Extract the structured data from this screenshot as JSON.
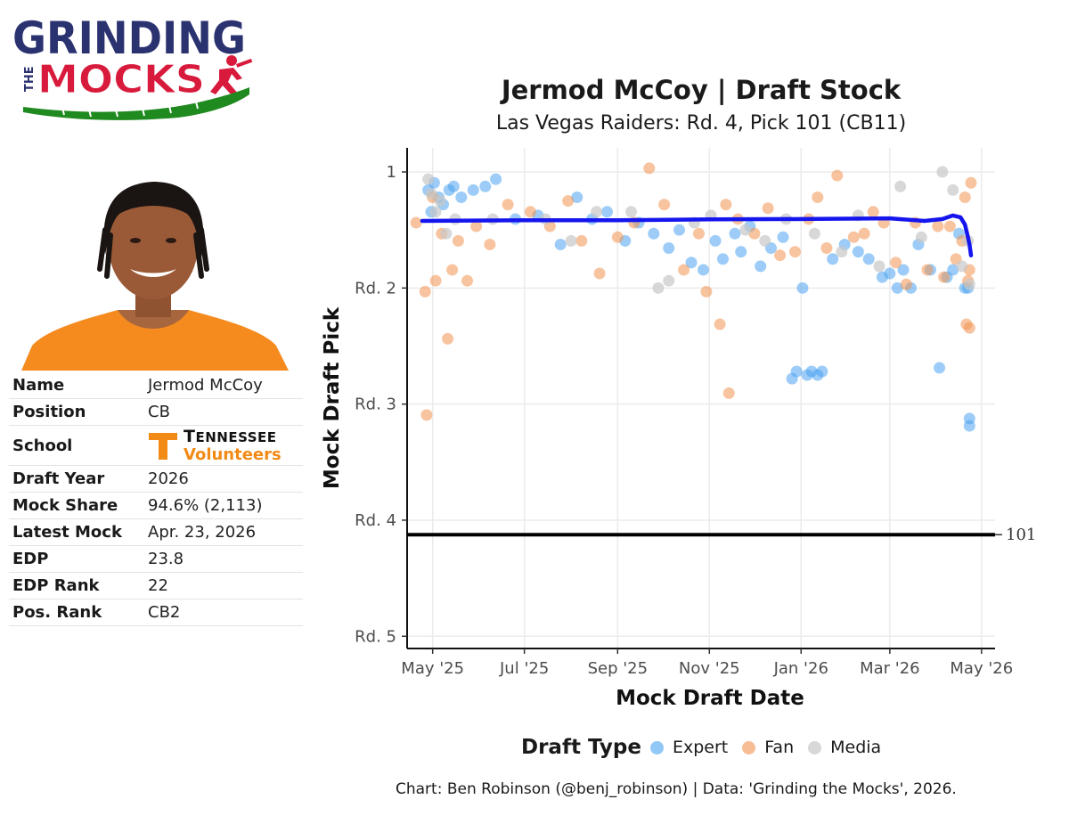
{
  "logo": {
    "line1": "GRINDING",
    "line2_prefix": "THE",
    "line2": "MOCKS"
  },
  "player": {
    "rows": [
      {
        "label": "Name",
        "value": "Jermod McCoy"
      },
      {
        "label": "Position",
        "value": "CB"
      },
      {
        "label": "School",
        "value": ""
      },
      {
        "label": "Draft Year",
        "value": "2026"
      },
      {
        "label": "Mock Share",
        "value": "94.6% (2,113)"
      },
      {
        "label": "Latest Mock",
        "value": "Apr. 23, 2026"
      },
      {
        "label": "EDP",
        "value": "23.8"
      },
      {
        "label": "EDP Rank",
        "value": "22"
      },
      {
        "label": "Pos. Rank",
        "value": "CB2"
      }
    ],
    "school": {
      "top_big": "T",
      "top_rest": "ENNESSEE",
      "bottom": "Volunteers"
    }
  },
  "chart_data": {
    "type": "scatter",
    "title": "Jermod McCoy | Draft Stock",
    "subtitle": "Las Vegas Raiders: Rd. 4, Pick 101 (CB11)",
    "xlabel": "Mock Draft Date",
    "ylabel": "Mock Draft Pick",
    "x_ticks": [
      "May '25",
      "Jul '25",
      "Sep '25",
      "Nov '25",
      "Jan '26",
      "Mar '26",
      "May '26"
    ],
    "x_tick_dates": [
      "2025-05-01",
      "2025-07-01",
      "2025-09-01",
      "2025-11-01",
      "2026-01-01",
      "2026-03-01",
      "2026-05-01"
    ],
    "y_ticks": [
      {
        "label": "1",
        "value": 1
      },
      {
        "label": "Rd. 2",
        "value": 33
      },
      {
        "label": "Rd. 3",
        "value": 65
      },
      {
        "label": "Rd. 4",
        "value": 97
      },
      {
        "label": "Rd. 5",
        "value": 129
      }
    ],
    "xlim": [
      "2025-04-14",
      "2026-05-10"
    ],
    "ylim": [
      1,
      139
    ],
    "y_reversed": true,
    "grid": true,
    "reference_line": {
      "value": 101,
      "label": "101"
    },
    "legend_title": "Draft Type",
    "legend_position": "bottom",
    "series": [
      {
        "name": "Expert",
        "color": "#4aa3f0",
        "points": [
          [
            "2025-04-28",
            6
          ],
          [
            "2025-04-30",
            12
          ],
          [
            "2025-05-02",
            4
          ],
          [
            "2025-05-05",
            8
          ],
          [
            "2025-05-08",
            10
          ],
          [
            "2025-05-12",
            6
          ],
          [
            "2025-05-15",
            5
          ],
          [
            "2025-05-20",
            8
          ],
          [
            "2025-05-28",
            6
          ],
          [
            "2025-06-05",
            5
          ],
          [
            "2025-06-12",
            3
          ],
          [
            "2025-06-25",
            14
          ],
          [
            "2025-07-10",
            13
          ],
          [
            "2025-07-25",
            21
          ],
          [
            "2025-08-05",
            8
          ],
          [
            "2025-08-15",
            14
          ],
          [
            "2025-08-25",
            12
          ],
          [
            "2025-09-06",
            20
          ],
          [
            "2025-09-15",
            15
          ],
          [
            "2025-09-25",
            18
          ],
          [
            "2025-10-05",
            22
          ],
          [
            "2025-10-12",
            17
          ],
          [
            "2025-10-20",
            26
          ],
          [
            "2025-10-28",
            28
          ],
          [
            "2025-11-05",
            20
          ],
          [
            "2025-11-10",
            25
          ],
          [
            "2025-11-18",
            18
          ],
          [
            "2025-11-22",
            23
          ],
          [
            "2025-11-28",
            16
          ],
          [
            "2025-12-05",
            27
          ],
          [
            "2025-12-12",
            22
          ],
          [
            "2025-12-20",
            19
          ],
          [
            "2025-12-26",
            58
          ],
          [
            "2025-12-29",
            56
          ],
          [
            "2026-01-02",
            33
          ],
          [
            "2026-01-05",
            57
          ],
          [
            "2026-01-08",
            56
          ],
          [
            "2026-01-12",
            57
          ],
          [
            "2026-01-15",
            56
          ],
          [
            "2026-01-22",
            25
          ],
          [
            "2026-01-30",
            21
          ],
          [
            "2026-02-08",
            23
          ],
          [
            "2026-02-15",
            25
          ],
          [
            "2026-02-24",
            30
          ],
          [
            "2026-03-01",
            29
          ],
          [
            "2026-03-06",
            33
          ],
          [
            "2026-03-10",
            28
          ],
          [
            "2026-03-15",
            33
          ],
          [
            "2026-03-20",
            21
          ],
          [
            "2026-03-28",
            28
          ],
          [
            "2026-04-03",
            55
          ],
          [
            "2026-04-08",
            30
          ],
          [
            "2026-04-12",
            28
          ],
          [
            "2026-04-16",
            18
          ],
          [
            "2026-04-20",
            33
          ],
          [
            "2026-04-22",
            33
          ],
          [
            "2026-04-23",
            69
          ],
          [
            "2026-04-23",
            71
          ]
        ]
      },
      {
        "name": "Fan",
        "color": "#f29350",
        "points": [
          [
            "2025-04-20",
            15
          ],
          [
            "2025-04-26",
            34
          ],
          [
            "2025-04-27",
            68
          ],
          [
            "2025-05-01",
            8
          ],
          [
            "2025-05-03",
            31
          ],
          [
            "2025-05-07",
            18
          ],
          [
            "2025-05-11",
            47
          ],
          [
            "2025-05-14",
            28
          ],
          [
            "2025-05-18",
            20
          ],
          [
            "2025-05-24",
            31
          ],
          [
            "2025-05-30",
            16
          ],
          [
            "2025-06-08",
            21
          ],
          [
            "2025-06-20",
            10
          ],
          [
            "2025-07-05",
            12
          ],
          [
            "2025-07-18",
            16
          ],
          [
            "2025-07-30",
            9
          ],
          [
            "2025-08-08",
            20
          ],
          [
            "2025-08-20",
            29
          ],
          [
            "2025-09-01",
            19
          ],
          [
            "2025-09-12",
            15
          ],
          [
            "2025-09-22",
            0
          ],
          [
            "2025-10-02",
            10
          ],
          [
            "2025-10-15",
            28
          ],
          [
            "2025-10-25",
            18
          ],
          [
            "2025-10-30",
            34
          ],
          [
            "2025-11-08",
            43
          ],
          [
            "2025-11-12",
            10
          ],
          [
            "2025-11-14",
            62
          ],
          [
            "2025-11-20",
            14
          ],
          [
            "2025-12-01",
            18
          ],
          [
            "2025-12-10",
            11
          ],
          [
            "2025-12-18",
            24
          ],
          [
            "2025-12-28",
            23
          ],
          [
            "2026-01-06",
            14
          ],
          [
            "2026-01-12",
            8
          ],
          [
            "2026-01-18",
            22
          ],
          [
            "2026-01-25",
            2
          ],
          [
            "2026-02-05",
            19
          ],
          [
            "2026-02-12",
            18
          ],
          [
            "2026-02-18",
            12
          ],
          [
            "2026-02-25",
            15
          ],
          [
            "2026-03-05",
            26
          ],
          [
            "2026-03-12",
            32
          ],
          [
            "2026-03-18",
            15
          ],
          [
            "2026-03-26",
            28
          ],
          [
            "2026-04-02",
            16
          ],
          [
            "2026-04-06",
            30
          ],
          [
            "2026-04-10",
            16
          ],
          [
            "2026-04-14",
            25
          ],
          [
            "2026-04-18",
            20
          ],
          [
            "2026-04-20",
            8
          ],
          [
            "2026-04-21",
            43
          ],
          [
            "2026-04-22",
            31
          ],
          [
            "2026-04-23",
            44
          ],
          [
            "2026-04-23",
            28
          ],
          [
            "2026-04-24",
            4
          ]
        ]
      },
      {
        "name": "Media",
        "color": "#c8c8c8",
        "points": [
          [
            "2025-04-28",
            3
          ],
          [
            "2025-04-30",
            7
          ],
          [
            "2025-05-03",
            12
          ],
          [
            "2025-05-06",
            9
          ],
          [
            "2025-05-10",
            18
          ],
          [
            "2025-05-16",
            14
          ],
          [
            "2025-06-10",
            14
          ],
          [
            "2025-07-15",
            14
          ],
          [
            "2025-08-01",
            20
          ],
          [
            "2025-08-18",
            12
          ],
          [
            "2025-09-10",
            12
          ],
          [
            "2025-09-28",
            33
          ],
          [
            "2025-10-05",
            31
          ],
          [
            "2025-10-22",
            15
          ],
          [
            "2025-11-02",
            13
          ],
          [
            "2025-11-25",
            17
          ],
          [
            "2025-12-08",
            20
          ],
          [
            "2025-12-22",
            14
          ],
          [
            "2026-01-10",
            18
          ],
          [
            "2026-01-28",
            23
          ],
          [
            "2026-02-08",
            13
          ],
          [
            "2026-02-22",
            27
          ],
          [
            "2026-03-08",
            5
          ],
          [
            "2026-03-22",
            19
          ],
          [
            "2026-04-05",
            1
          ],
          [
            "2026-04-12",
            6
          ],
          [
            "2026-04-18",
            27
          ],
          [
            "2026-04-22",
            20
          ],
          [
            "2026-04-23",
            32
          ]
        ]
      },
      {
        "name": "Trend",
        "color": "#1515ee",
        "type": "line",
        "points": [
          [
            "2025-04-24",
            14.5
          ],
          [
            "2025-07-01",
            14.3
          ],
          [
            "2025-09-01",
            14.3
          ],
          [
            "2025-11-01",
            14.1
          ],
          [
            "2026-01-01",
            14.0
          ],
          [
            "2026-03-01",
            13.8
          ],
          [
            "2026-03-24",
            14.5
          ],
          [
            "2026-04-05",
            14.0
          ],
          [
            "2026-04-12",
            13.0
          ],
          [
            "2026-04-17",
            13.5
          ],
          [
            "2026-04-20",
            15.5
          ],
          [
            "2026-04-22",
            19.0
          ],
          [
            "2026-04-23",
            21.0
          ],
          [
            "2026-04-24",
            24.0
          ]
        ]
      }
    ]
  },
  "caption": "Chart: Ben Robinson (@benj_robinson) | Data: 'Grinding the Mocks', 2026."
}
